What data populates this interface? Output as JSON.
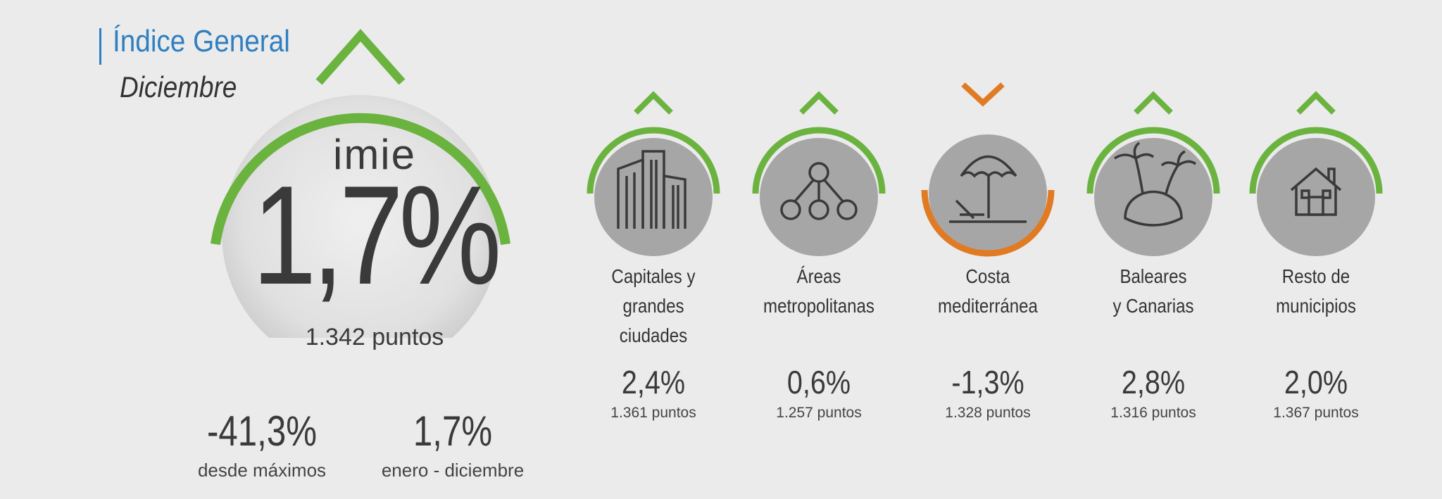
{
  "header": {
    "title": "Índice General",
    "subtitle": "Diciembre"
  },
  "main": {
    "logo": "imie",
    "value": "1,7%",
    "points": "1.342 puntos",
    "trend": "up",
    "accent": "#6bb33f"
  },
  "stats": [
    {
      "value": "-41,3%",
      "label": "desde máximos"
    },
    {
      "value": "1,7%",
      "label": "enero - diciembre"
    }
  ],
  "regions": [
    {
      "name_line1": "Capitales y",
      "name_line2": "grandes ciudades",
      "value": "2,4%",
      "points": "1.361 puntos",
      "trend": "up",
      "icon": "buildings-icon"
    },
    {
      "name_line1": "Áreas",
      "name_line2": "metropolitanas",
      "value": "0,6%",
      "points": "1.257 puntos",
      "trend": "up",
      "icon": "network-icon"
    },
    {
      "name_line1": "Costa",
      "name_line2": "mediterránea",
      "value": "-1,3%",
      "points": "1.328 puntos",
      "trend": "down",
      "icon": "beach-umbrella-icon"
    },
    {
      "name_line1": "Baleares",
      "name_line2": "y Canarias",
      "value": "2,8%",
      "points": "1.316 puntos",
      "trend": "up",
      "icon": "island-icon"
    },
    {
      "name_line1": "Resto de",
      "name_line2": "municipios",
      "value": "2,0%",
      "points": "1.367 puntos",
      "trend": "up",
      "icon": "house-icon"
    }
  ],
  "colors": {
    "up": "#6bb33f",
    "down": "#e07b24",
    "circle": "#a6a6a6",
    "title": "#2f7fc1"
  }
}
